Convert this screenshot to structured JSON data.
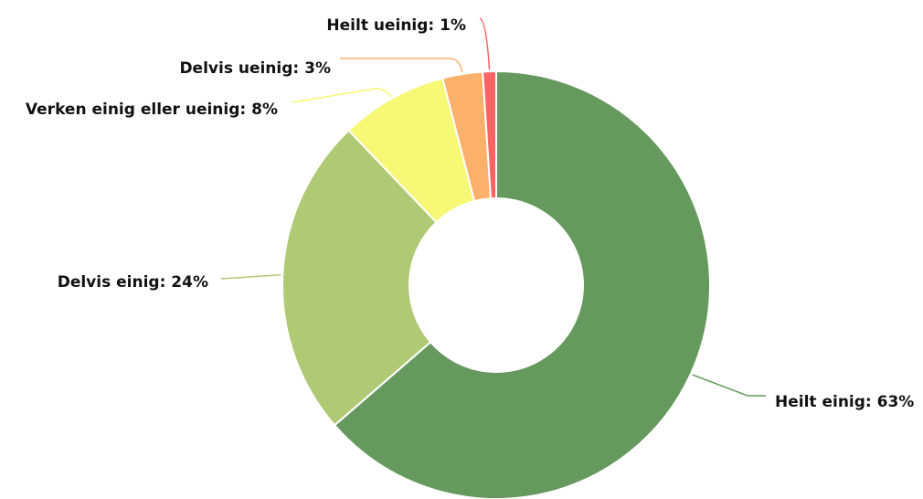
{
  "chart_data": {
    "type": "pie",
    "variant": "donut",
    "title": "",
    "slices": [
      {
        "label": "Heilt einig",
        "value": 63,
        "color": "#66995e",
        "label_text": "Heilt einig: 63%"
      },
      {
        "label": "Delvis einig",
        "value": 24,
        "color": "#b0c974",
        "label_text": "Delvis einig: 24%"
      },
      {
        "label": "Verken einig eller ueinig",
        "value": 8,
        "color": "#f6f876",
        "label_text": "Verken einig eller ueinig: 8%"
      },
      {
        "label": "Delvis ueinig",
        "value": 3,
        "color": "#fbb06b",
        "label_text": "Delvis ueinig: 3%"
      },
      {
        "label": "Heilt ueinig",
        "value": 1,
        "color": "#fa6464",
        "label_text": "Heilt ueinig: 1%"
      }
    ],
    "legend": "none",
    "labels": "outside-with-connectors"
  }
}
